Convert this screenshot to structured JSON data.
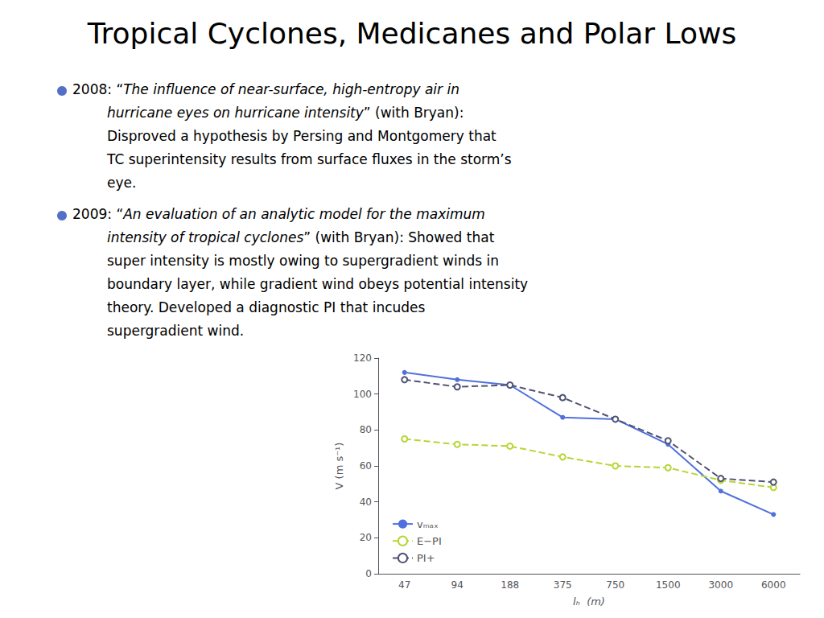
{
  "chart_data": {
    "type": "line",
    "title": "Tropical Cyclones, Medicanes and Polar Lows",
    "annotations": [
      [
        "2008: “The influence of near-surface, high-entropy air in",
        "hurricane eyes on hurricane intensity” (with Bryan):",
        "Disproved a hypothesis by Persing and Montgomery that",
        "TC superintensity results from surface fluxes in the storm’s",
        "eye."
      ],
      [
        "2009: “An evaluation of an analytic model for the maximum",
        "intensity of tropical cyclones” (with Bryan): Showed that",
        "super intensity is mostly owing to supergradient winds in",
        "boundary layer, while gradient wind obeys potential intensity",
        "theory. Developed a diagnostic PI that incudes",
        "supergradient wind."
      ]
    ],
    "categories": [
      "47",
      "94",
      "188",
      "375",
      "750",
      "1500",
      "3000",
      "6000"
    ],
    "xlabel": "lₕ  (m)",
    "ylabel": "V (m s⁻¹)",
    "series": [
      {
        "name": "vₘₐₓ",
        "values": [
          112,
          108,
          105,
          87,
          86,
          72,
          46,
          33
        ],
        "line_style": "solid",
        "marker": "circle"
      },
      {
        "name": "E−PI",
        "values": [
          75,
          72,
          71,
          65,
          60,
          59,
          52,
          48
        ],
        "line_style": "dashed",
        "marker": "open_circle"
      },
      {
        "name": "PI+",
        "values": [
          108,
          104,
          105,
          98,
          86,
          74,
          53,
          51
        ],
        "line_style": "dashed",
        "marker": "open_circle"
      }
    ],
    "ylim": [
      0,
      120
    ],
    "yticks": [
      0,
      20,
      40,
      60,
      80,
      100,
      120
    ],
    "grid": false,
    "legend": "lower left"
  }
}
